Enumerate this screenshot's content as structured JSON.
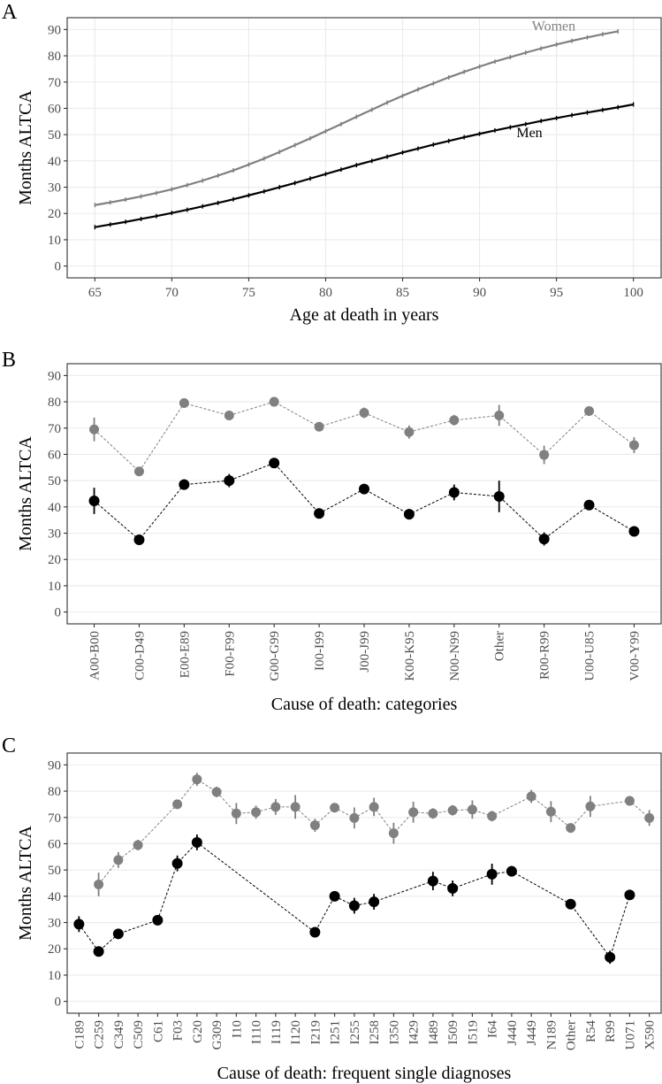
{
  "chart_data": [
    {
      "panel": "A",
      "type": "line",
      "xlabel": "Age at death in years",
      "ylabel": "Months ALTCA",
      "xlim": [
        63.2,
        101.8
      ],
      "ylim": [
        -4.5,
        94.5
      ],
      "xticks": [
        65,
        70,
        75,
        80,
        85,
        90,
        95,
        100
      ],
      "yticks": [
        0,
        10,
        20,
        30,
        40,
        50,
        60,
        70,
        80,
        90
      ],
      "series": [
        {
          "name": "Women",
          "label": "Women",
          "color": "#808080",
          "x": [
            65,
            66,
            67,
            68,
            69,
            70,
            71,
            72,
            73,
            74,
            75,
            76,
            77,
            78,
            79,
            80,
            81,
            82,
            83,
            84,
            85,
            86,
            87,
            88,
            89,
            90,
            91,
            92,
            93,
            94,
            95,
            96,
            97,
            98,
            99
          ],
          "y": [
            23.2,
            24.2,
            25.3,
            26.5,
            27.8,
            29.2,
            30.8,
            32.5,
            34.4,
            36.4,
            38.6,
            40.9,
            43.4,
            46.0,
            48.6,
            51.3,
            54.0,
            56.8,
            59.5,
            62.2,
            64.8,
            67.2,
            69.5,
            71.8,
            73.9,
            75.9,
            77.8,
            79.5,
            81.2,
            82.8,
            84.3,
            85.7,
            87.0,
            88.2,
            89.3
          ]
        },
        {
          "name": "Men",
          "label": "Men",
          "color": "#000000",
          "x": [
            65,
            66,
            67,
            68,
            69,
            70,
            71,
            72,
            73,
            74,
            75,
            76,
            77,
            78,
            79,
            80,
            81,
            82,
            83,
            84,
            85,
            86,
            87,
            88,
            89,
            90,
            91,
            92,
            93,
            94,
            95,
            96,
            97,
            98,
            99,
            100
          ],
          "y": [
            14.8,
            15.8,
            16.8,
            17.9,
            19.0,
            20.2,
            21.4,
            22.7,
            24.0,
            25.4,
            26.9,
            28.4,
            30.0,
            31.6,
            33.3,
            35.0,
            36.7,
            38.4,
            40.0,
            41.6,
            43.2,
            44.7,
            46.2,
            47.6,
            49.0,
            50.3,
            51.6,
            52.8,
            54.0,
            55.2,
            56.3,
            57.4,
            58.4,
            59.4,
            60.4,
            61.5
          ]
        }
      ]
    },
    {
      "panel": "B",
      "type": "scatter",
      "xlabel": "Cause of death: categories",
      "ylabel": "Months ALTCA",
      "ylim": [
        -4.5,
        94.5
      ],
      "yticks": [
        0,
        10,
        20,
        30,
        40,
        50,
        60,
        70,
        80,
        90
      ],
      "categories": [
        "A00-B00",
        "C00-D49",
        "E00-E89",
        "F00-F99",
        "G00-G99",
        "I00-I99",
        "J00-J99",
        "K00-K95",
        "N00-N99",
        "Other",
        "R00-R99",
        "U00-U85",
        "V00-Y99"
      ],
      "series": [
        {
          "name": "Women",
          "color": "#808080",
          "values": [
            69.5,
            53.5,
            79.5,
            74.8,
            80.0,
            70.5,
            75.8,
            68.5,
            73.0,
            74.8,
            59.8,
            76.5,
            63.5
          ],
          "errors": [
            4.5,
            1.5,
            1.5,
            1.5,
            1.5,
            1.5,
            2.0,
            2.5,
            2.0,
            4.0,
            3.5,
            1.5,
            3.0
          ]
        },
        {
          "name": "Men",
          "color": "#000000",
          "values": [
            42.3,
            27.5,
            48.5,
            50.0,
            56.7,
            37.5,
            46.8,
            37.2,
            45.5,
            44.0,
            27.8,
            40.7,
            30.7
          ],
          "errors": [
            5.0,
            1.5,
            2.0,
            2.5,
            1.5,
            1.5,
            1.5,
            2.0,
            3.0,
            6.0,
            2.5,
            1.5,
            1.5
          ]
        }
      ]
    },
    {
      "panel": "C",
      "type": "scatter",
      "xlabel": "Cause of death: frequent single diagnoses",
      "ylabel": "Months ALTCA",
      "ylim": [
        -4.5,
        94.5
      ],
      "yticks": [
        0,
        10,
        20,
        30,
        40,
        50,
        60,
        70,
        80,
        90
      ],
      "categories": [
        "C189",
        "C259",
        "C349",
        "C509",
        "C61",
        "F03",
        "G20",
        "G309",
        "I10",
        "I110",
        "I119",
        "I120",
        "I219",
        "I251",
        "I255",
        "I258",
        "I350",
        "I429",
        "I489",
        "I509",
        "I519",
        "I64",
        "J440",
        "J449",
        "N189",
        "Other",
        "R54",
        "R99",
        "U071",
        "X590"
      ],
      "series": [
        {
          "name": "Women",
          "color": "#808080",
          "values": [
            null,
            44.5,
            53.8,
            59.5,
            null,
            75.0,
            84.5,
            79.7,
            71.5,
            72.0,
            74.0,
            74.0,
            67.0,
            73.7,
            69.8,
            74.0,
            64.0,
            72.0,
            71.5,
            72.7,
            73.0,
            70.5,
            null,
            78.0,
            72.2,
            66.0,
            74.2,
            null,
            76.3,
            69.8
          ],
          "errors": [
            null,
            4.5,
            3.0,
            2.0,
            null,
            1.5,
            2.5,
            2.0,
            4.0,
            2.5,
            3.0,
            4.5,
            2.5,
            1.5,
            4.0,
            3.5,
            4.0,
            4.0,
            2.0,
            2.0,
            3.5,
            2.0,
            null,
            2.5,
            4.0,
            1.5,
            4.0,
            null,
            1.5,
            3.0
          ]
        },
        {
          "name": "Men",
          "color": "#000000",
          "values": [
            29.4,
            19.0,
            25.7,
            null,
            30.9,
            52.5,
            60.5,
            null,
            null,
            null,
            null,
            null,
            26.3,
            40.0,
            36.4,
            37.9,
            null,
            null,
            45.8,
            43.0,
            null,
            48.4,
            49.5,
            null,
            null,
            37.0,
            null,
            16.8,
            40.5,
            null
          ],
          "errors": [
            3.0,
            1.5,
            1.5,
            null,
            1.5,
            3.0,
            3.0,
            null,
            null,
            null,
            null,
            null,
            1.5,
            1.5,
            3.0,
            3.0,
            null,
            null,
            3.5,
            3.0,
            null,
            4.0,
            2.0,
            null,
            null,
            1.5,
            null,
            2.5,
            1.5,
            null
          ]
        }
      ]
    }
  ]
}
